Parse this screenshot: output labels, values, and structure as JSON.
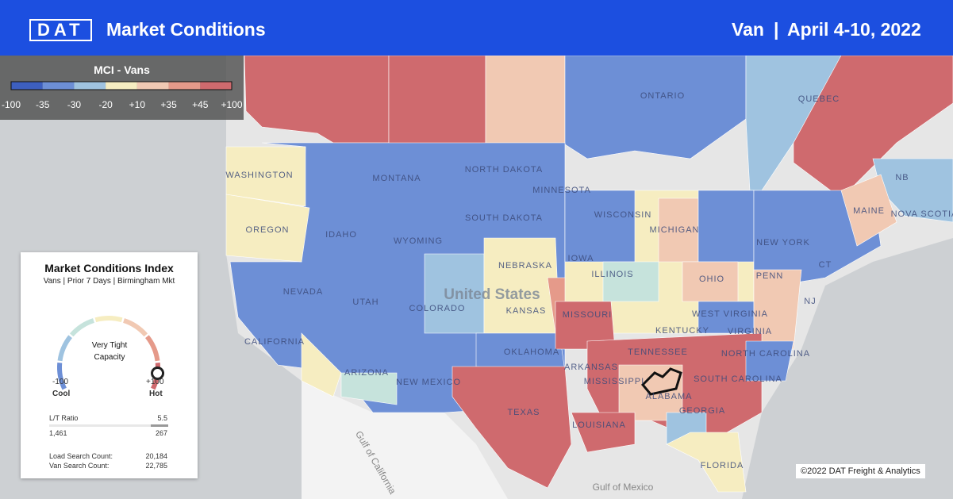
{
  "header": {
    "brand": "DAT",
    "title": "Market Conditions",
    "equipment": "Van",
    "separator": "|",
    "date": "April 4-10, 2022"
  },
  "legend": {
    "title": "MCI - Vans",
    "ticks": [
      "-100",
      "-35",
      "-30",
      "-20",
      "+10",
      "+35",
      "+45",
      "+100"
    ]
  },
  "card": {
    "title": "Market Conditions Index",
    "subtitle": "Vans | Prior 7 Days | Birmingham Mkt",
    "gauge_label": "Very Tight Capacity",
    "min": "-100",
    "min_label": "Cool",
    "max": "+100",
    "max_label": "Hot",
    "lt_ratio_label": "L/T Ratio",
    "lt_ratio": "5.5",
    "loads": "1,461",
    "trucks": "267",
    "load_search_label": "Load Search Count:",
    "load_search": "20,184",
    "van_search_label": "Van Search Count:",
    "van_search": "22,785"
  },
  "map": {
    "labels": [
      "ONTARIO",
      "QUEBEC",
      "WASHINGTON",
      "MONTANA",
      "NORTH DAKOTA",
      "MINNESOTA",
      "SOUTH DAKOTA",
      "WISCONSIN",
      "MICHIGAN",
      "OREGON",
      "IDAHO",
      "WYOMING",
      "IOWA",
      "NEBRASKA",
      "NEW YORK",
      "MAINE",
      "NB",
      "NOVA SCOTIA",
      "PENN",
      "OHIO",
      "ILLINOIS",
      "NEVADA",
      "UTAH",
      "COLORADO",
      "KANSAS",
      "MISSOURI",
      "United States",
      "NJ",
      "CT",
      "WEST VIRGINIA",
      "KENTUCKY",
      "VIRGINIA",
      "CALIFORNIA",
      "OKLAHOMA",
      "TENNESSEE",
      "NORTH CAROLINA",
      "ARIZONA",
      "NEW MEXICO",
      "ARKANSAS",
      "SOUTH CAROLINA",
      "MISSISSIPPI",
      "ALABAMA",
      "GEORGIA",
      "TEXAS",
      "LOUISIANA",
      "FLORIDA",
      "Gulf of California",
      "Gulf of Mexico"
    ]
  },
  "copyright": "©2022 DAT Freight & Analytics"
}
